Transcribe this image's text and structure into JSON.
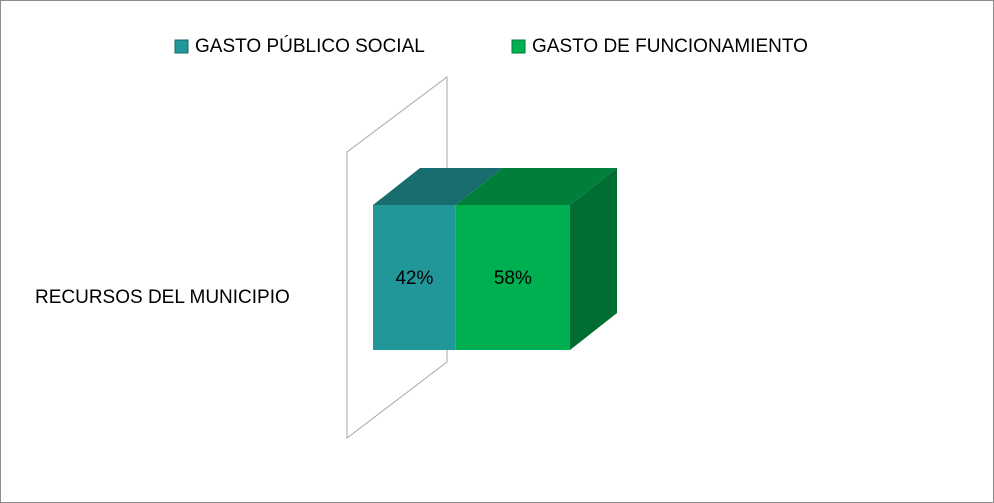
{
  "chart_data": {
    "type": "stacked-bar-3d",
    "categories": [
      "RECURSOS DEL MUNICIPIO"
    ],
    "series": [
      {
        "name": "GASTO PÚBLICO SOCIAL",
        "color": "#21979a",
        "values": [
          42
        ],
        "value_labels": [
          "42%"
        ]
      },
      {
        "name": "GASTO DE FUNCIONAMIENTO",
        "color": "#00b050",
        "values": [
          58
        ],
        "value_labels": [
          "58%"
        ]
      }
    ]
  }
}
